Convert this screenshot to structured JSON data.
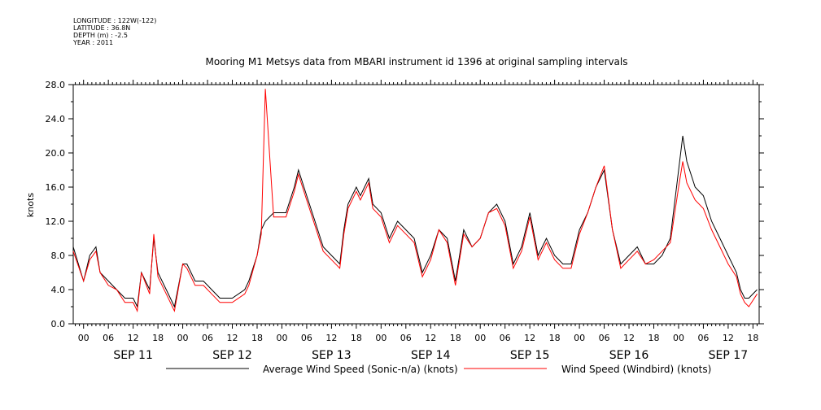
{
  "meta": {
    "longitude": "LONGITUDE : 122W(-122)",
    "latitude": "LATITUDE : 36.8N",
    "depth": "DEPTH (m) : -2.5",
    "year": "YEAR : 2011"
  },
  "colors": {
    "series_1": "#000000",
    "series_2": "#ff0000"
  },
  "chart_data": {
    "type": "line",
    "title": "Mooring M1 Metsys data from MBARI instrument id 1396 at original sampling intervals",
    "xlabel": "",
    "ylabel": "knots",
    "ylim": [
      0,
      28
    ],
    "y_ticks": [
      "0.0",
      "4.0",
      "8.0",
      "12.0",
      "16.0",
      "20.0",
      "24.0",
      "28.0"
    ],
    "x_unit": "hours since 2011-09-11 00:00",
    "xlim": [
      -2.5,
      163.5
    ],
    "hour_ticks": [
      "00",
      "06",
      "12",
      "18",
      "00",
      "06",
      "12",
      "18",
      "00",
      "06",
      "12",
      "18",
      "00",
      "06",
      "12",
      "18",
      "00",
      "06",
      "12",
      "18",
      "00",
      "06",
      "12",
      "18",
      "00",
      "06",
      "12",
      "18"
    ],
    "day_labels": [
      "SEP 11",
      "SEP 12",
      "SEP 13",
      "SEP 14",
      "SEP 15",
      "SEP 16",
      "SEP 17"
    ],
    "legend": "bottom",
    "grid": false,
    "series": [
      {
        "name": "Average Wind Speed (Sonic-n/a) (knots)",
        "color": "#000000",
        "x": [
          -2.5,
          0,
          1.5,
          3,
          4,
          6,
          8,
          10,
          12,
          13,
          14,
          16,
          17,
          18,
          20,
          22,
          24,
          25,
          27,
          29,
          31,
          33,
          36,
          39,
          40,
          42,
          43,
          44,
          46,
          49,
          51,
          52,
          54,
          56,
          58,
          60,
          62,
          63,
          64,
          66,
          67,
          69,
          70,
          72,
          74,
          76,
          78,
          80,
          82,
          84,
          86,
          88,
          90,
          92,
          94,
          96,
          98,
          100,
          102,
          104,
          106,
          108,
          110,
          112,
          114,
          116,
          118,
          120,
          122,
          124,
          126,
          128,
          130,
          132,
          134,
          136,
          138,
          140,
          142,
          144,
          145,
          146,
          148,
          150,
          152,
          154,
          156,
          158,
          159,
          160,
          161,
          163
        ],
        "y": [
          9,
          5,
          8,
          9,
          6,
          5,
          4,
          3,
          3,
          2,
          6,
          4,
          10,
          6,
          4,
          2,
          7,
          7,
          5,
          5,
          4,
          3,
          3,
          4,
          5,
          8,
          11,
          12,
          13,
          13,
          16,
          18,
          15,
          12,
          9,
          8,
          7,
          11,
          14,
          16,
          15,
          17,
          14,
          13,
          10,
          12,
          11,
          10,
          6,
          8,
          11,
          10,
          5,
          11,
          9,
          10,
          13,
          14,
          12,
          7,
          9,
          13,
          8,
          10,
          8,
          7,
          7,
          11,
          13,
          16,
          18,
          11,
          7,
          8,
          9,
          7,
          7,
          8,
          10,
          18,
          22,
          19,
          16,
          15,
          12,
          10,
          8,
          6,
          4,
          3,
          3,
          4
        ]
      },
      {
        "name": "Wind Speed (Windbird) (knots)",
        "color": "#ff0000",
        "x": [
          -2.5,
          0,
          1.5,
          3,
          4,
          6,
          8,
          10,
          12,
          13,
          14,
          16,
          17,
          18,
          20,
          22,
          24,
          25,
          27,
          29,
          31,
          33,
          36,
          39,
          40,
          42,
          43,
          44,
          46,
          49,
          51,
          52,
          54,
          56,
          58,
          60,
          62,
          63,
          64,
          66,
          67,
          69,
          70,
          72,
          74,
          76,
          78,
          80,
          82,
          84,
          86,
          88,
          90,
          92,
          94,
          96,
          98,
          100,
          102,
          104,
          106,
          108,
          110,
          112,
          114,
          116,
          118,
          120,
          122,
          124,
          126,
          128,
          130,
          132,
          134,
          136,
          138,
          140,
          142,
          144,
          145,
          146,
          148,
          150,
          152,
          154,
          156,
          158,
          159,
          160,
          161,
          163
        ],
        "y": [
          8.5,
          5,
          7.5,
          8.5,
          6,
          4.5,
          4,
          2.5,
          2.5,
          1.5,
          6,
          3.5,
          10.5,
          5.5,
          3.5,
          1.5,
          7,
          6.5,
          4.5,
          4.5,
          3.5,
          2.5,
          2.5,
          3.5,
          4.5,
          8,
          10.5,
          27.5,
          12.5,
          12.5,
          15.5,
          17.5,
          14.5,
          11.5,
          8.5,
          7.5,
          6.5,
          10.5,
          13.5,
          15.5,
          14.5,
          16.5,
          13.5,
          12.5,
          9.5,
          11.5,
          10.5,
          9.5,
          5.5,
          7.5,
          11,
          9.5,
          4.5,
          10.5,
          9,
          10,
          13,
          13.5,
          11.5,
          6.5,
          8.5,
          12.5,
          7.5,
          9.5,
          7.5,
          6.5,
          6.5,
          10.5,
          13,
          16,
          18.5,
          11,
          6.5,
          7.5,
          8.5,
          7,
          7.5,
          8.5,
          9.5,
          16,
          19,
          16.5,
          14.5,
          13.5,
          11,
          9,
          7,
          5.5,
          3.5,
          2.5,
          2,
          3.5
        ]
      }
    ]
  }
}
